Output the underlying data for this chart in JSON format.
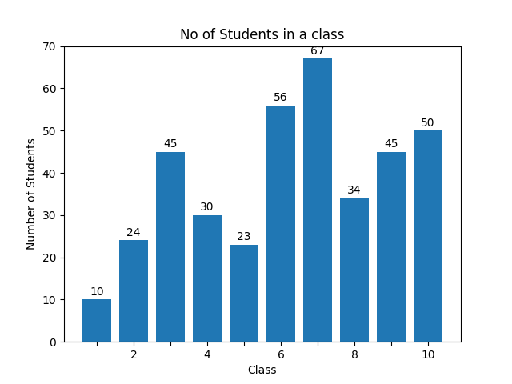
{
  "x_values": [
    1,
    2,
    3,
    4,
    5,
    6,
    7,
    8,
    9,
    10
  ],
  "y_values": [
    10,
    24,
    45,
    30,
    23,
    56,
    67,
    34,
    45,
    50
  ],
  "bar_color": "#2077b4",
  "title": "No of Students in a class",
  "xlabel": "Class",
  "ylabel": "Number of Students",
  "ylim": [
    0,
    70
  ],
  "title_fontsize": 12,
  "label_fontsize": 10,
  "figsize": [
    6.4,
    4.8
  ],
  "dpi": 100
}
